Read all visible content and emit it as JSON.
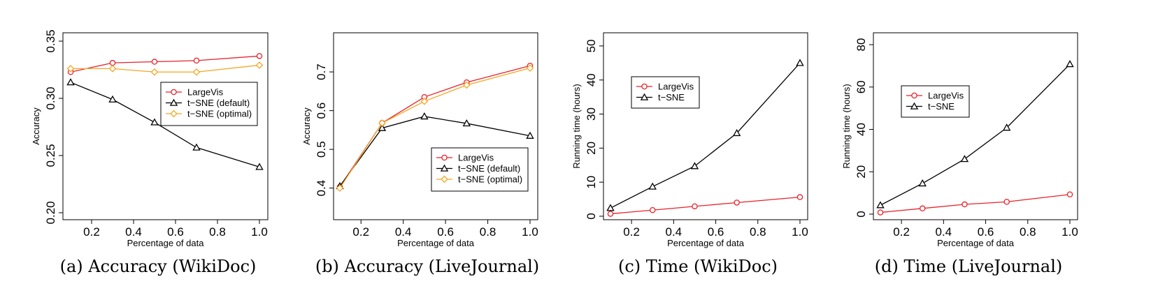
{
  "chart_data": [
    {
      "type": "line",
      "caption": "(a) Accuracy (WikiDoc)",
      "xlabel": "Percentage of data",
      "ylabel": "Accuracy",
      "xlim": [
        0.1,
        1.0
      ],
      "ylim": [
        0.2,
        0.35
      ],
      "xticks": [
        0.2,
        0.4,
        0.6,
        0.8,
        1.0
      ],
      "xtick_labels": [
        "0.2",
        "0.4",
        "0.6",
        "0.8",
        "1.0"
      ],
      "yticks": [
        0.2,
        0.25,
        0.3,
        0.35
      ],
      "ytick_labels": [
        "0.20",
        "0.25",
        "0.30",
        "0.35"
      ],
      "x": [
        0.1,
        0.3,
        0.5,
        0.7,
        1.0
      ],
      "legend_position": "right-middle",
      "series": [
        {
          "name": "LargeVis",
          "color": "#e8222a",
          "marker": "circle",
          "values": [
            0.323,
            0.331,
            0.332,
            0.333,
            0.337
          ]
        },
        {
          "name": "t−SNE (default)",
          "color": "#000000",
          "marker": "triangle",
          "values": [
            0.314,
            0.299,
            0.279,
            0.257,
            0.24
          ]
        },
        {
          "name": "t−SNE (optimal)",
          "color": "#f5a623",
          "marker": "diamond",
          "values": [
            0.326,
            0.326,
            0.323,
            0.323,
            0.329
          ]
        }
      ]
    },
    {
      "type": "line",
      "caption": "(b) Accuracy (LiveJournal)",
      "xlabel": "Percentage of data",
      "ylabel": "Accuracy",
      "xlim": [
        0.1,
        1.0
      ],
      "ylim": [
        0.385,
        0.72
      ],
      "xticks": [
        0.2,
        0.4,
        0.6,
        0.8,
        1.0
      ],
      "xtick_labels": [
        "0.2",
        "0.4",
        "0.6",
        "0.8",
        "1.0"
      ],
      "yticks": [
        0.4,
        0.5,
        0.6,
        0.7
      ],
      "ytick_labels": [
        "0.4",
        "0.5",
        "0.6",
        "0.7"
      ],
      "x": [
        0.1,
        0.3,
        0.5,
        0.7,
        1.0
      ],
      "legend_position": "bottom-right",
      "series": [
        {
          "name": "LargeVis",
          "color": "#e8222a",
          "marker": "circle",
          "values": [
            0.403,
            0.568,
            0.635,
            0.673,
            0.716
          ]
        },
        {
          "name": "t−SNE (default)",
          "color": "#000000",
          "marker": "triangle",
          "values": [
            0.405,
            0.555,
            0.585,
            0.567,
            0.535
          ]
        },
        {
          "name": "t−SNE (optimal)",
          "color": "#f5a623",
          "marker": "diamond",
          "values": [
            0.4,
            0.568,
            0.624,
            0.666,
            0.71
          ]
        }
      ]
    },
    {
      "type": "line",
      "caption": "(c) Time (WikiDoc)",
      "xlabel": "Percentage of data",
      "ylabel": "Running time (hours)",
      "xlim": [
        0.1,
        1.0
      ],
      "ylim": [
        0,
        51
      ],
      "xticks": [
        0.2,
        0.4,
        0.6,
        0.8,
        1.0
      ],
      "xtick_labels": [
        "0.2",
        "0.4",
        "0.6",
        "0.8",
        "1.0"
      ],
      "yticks": [
        0,
        10,
        20,
        30,
        40,
        50
      ],
      "ytick_labels": [
        "0",
        "10",
        "20",
        "30",
        "40",
        "50"
      ],
      "x": [
        0.1,
        0.3,
        0.5,
        0.7,
        1.0
      ],
      "legend_position": "top-left",
      "series": [
        {
          "name": "LargeVis",
          "color": "#e8222a",
          "marker": "circle",
          "values": [
            0.7,
            1.8,
            2.9,
            4.0,
            5.6
          ]
        },
        {
          "name": "t−SNE",
          "color": "#000000",
          "marker": "triangle",
          "values": [
            2.4,
            8.7,
            14.7,
            24.4,
            45.0
          ]
        }
      ]
    },
    {
      "type": "line",
      "caption": "(d) Time (LiveJournal)",
      "xlabel": "Percentage of data",
      "ylabel": "Running time (hours)",
      "xlim": [
        0.1,
        1.0
      ],
      "ylim": [
        0,
        81
      ],
      "xticks": [
        0.2,
        0.4,
        0.6,
        0.8,
        1.0
      ],
      "xtick_labels": [
        "0.2",
        "0.4",
        "0.6",
        "0.8",
        "1.0"
      ],
      "yticks": [
        0,
        20,
        40,
        60,
        80
      ],
      "ytick_labels": [
        "0",
        "20",
        "40",
        "60",
        "80"
      ],
      "x": [
        0.1,
        0.3,
        0.5,
        0.7,
        1.0
      ],
      "legend_position": "top-left",
      "series": [
        {
          "name": "LargeVis",
          "color": "#e8222a",
          "marker": "circle",
          "values": [
            0.8,
            2.7,
            4.6,
            5.8,
            9.3
          ]
        },
        {
          "name": "t−SNE",
          "color": "#000000",
          "marker": "triangle",
          "values": [
            4.2,
            14.5,
            26.0,
            40.8,
            70.8
          ]
        }
      ]
    }
  ]
}
